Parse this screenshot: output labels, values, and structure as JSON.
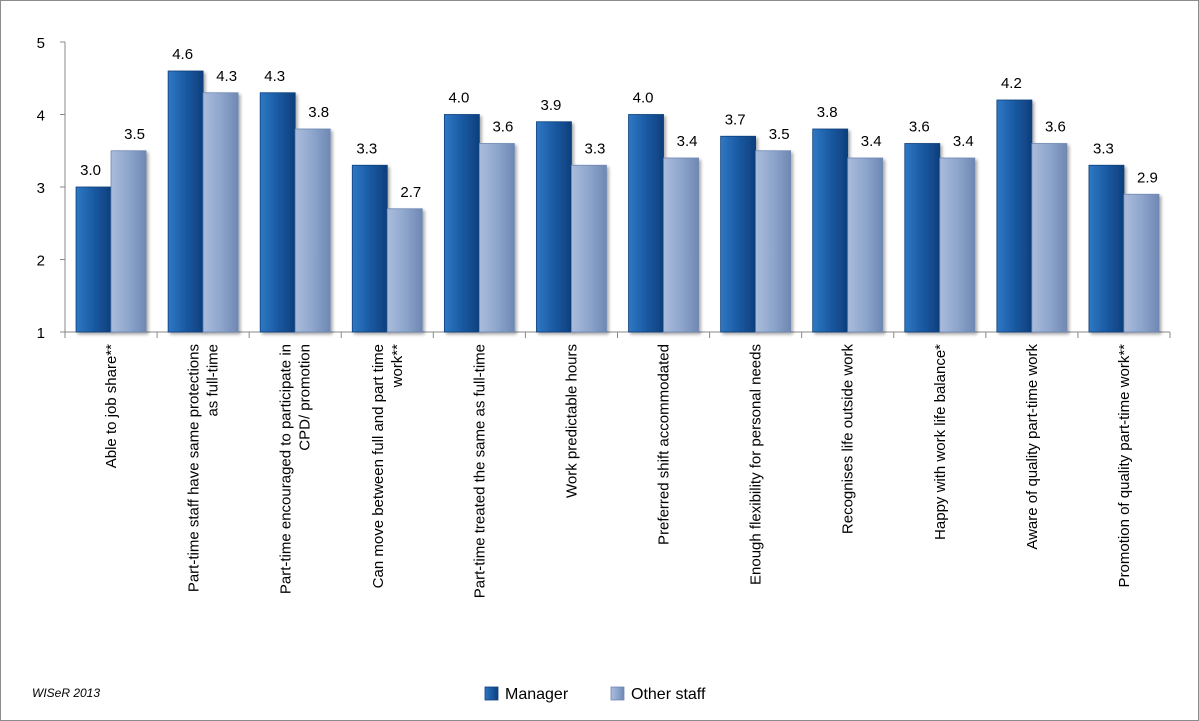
{
  "chart_data": {
    "type": "bar",
    "categories": [
      "Able to job share**",
      "Part-time staff have same protections as full-time",
      "Part-time encouraged to participate in CPD/ promotion",
      "Can move between full and part time work**",
      "Part-time treated the same as full-time",
      "Work predictable hours",
      "Preferred shift accommodated",
      "Enough flexibility for personal needs",
      "Recognises life outside work",
      "Happy with work life balance*",
      "Aware of quality part-time work",
      "Promotion of quality part-time work**"
    ],
    "category_lines": [
      [
        "Able to job share**"
      ],
      [
        "Part-time staff have same protections",
        "as full-time"
      ],
      [
        "Part-time encouraged to participate in",
        "CPD/ promotion"
      ],
      [
        "Can move between full and part time",
        "work**"
      ],
      [
        "Part-time treated the same as full-time"
      ],
      [
        "Work predictable hours"
      ],
      [
        "Preferred shift accommodated"
      ],
      [
        "Enough flexibility for personal needs"
      ],
      [
        "Recognises life outside work"
      ],
      [
        "Happy with work life balance*"
      ],
      [
        "Aware of quality part-time work"
      ],
      [
        "Promotion of quality part-time work**"
      ]
    ],
    "series": [
      {
        "name": "Manager",
        "color": "#1f5fa8",
        "values": [
          3.0,
          4.6,
          4.3,
          3.3,
          4.0,
          3.9,
          4.0,
          3.7,
          3.8,
          3.6,
          4.2,
          3.3
        ],
        "labels": [
          "3.0",
          "4.6",
          "4.3",
          "3.3",
          "4.0",
          "3.9",
          "4.0",
          "3.7",
          "3.8",
          "3.6",
          "4.2",
          "3.3"
        ]
      },
      {
        "name": "Other staff",
        "color": "#8ea6cc",
        "values": [
          3.5,
          4.3,
          3.8,
          2.7,
          3.6,
          3.3,
          3.4,
          3.5,
          3.4,
          3.4,
          3.6,
          2.9
        ],
        "labels": [
          "3.5",
          "4.3",
          "3.8",
          "2.7",
          "3.6",
          "3.3",
          "3.4",
          "3.5",
          "3.4",
          "3.4",
          "3.6",
          "2.9"
        ]
      }
    ],
    "title": "",
    "xlabel": "",
    "ylabel": "",
    "ylim": [
      1,
      5
    ],
    "yticks": [
      "1",
      "2",
      "3",
      "4",
      "5"
    ],
    "grid": false,
    "legend_position": "bottom-center"
  },
  "footnote": "WISeR 2013"
}
